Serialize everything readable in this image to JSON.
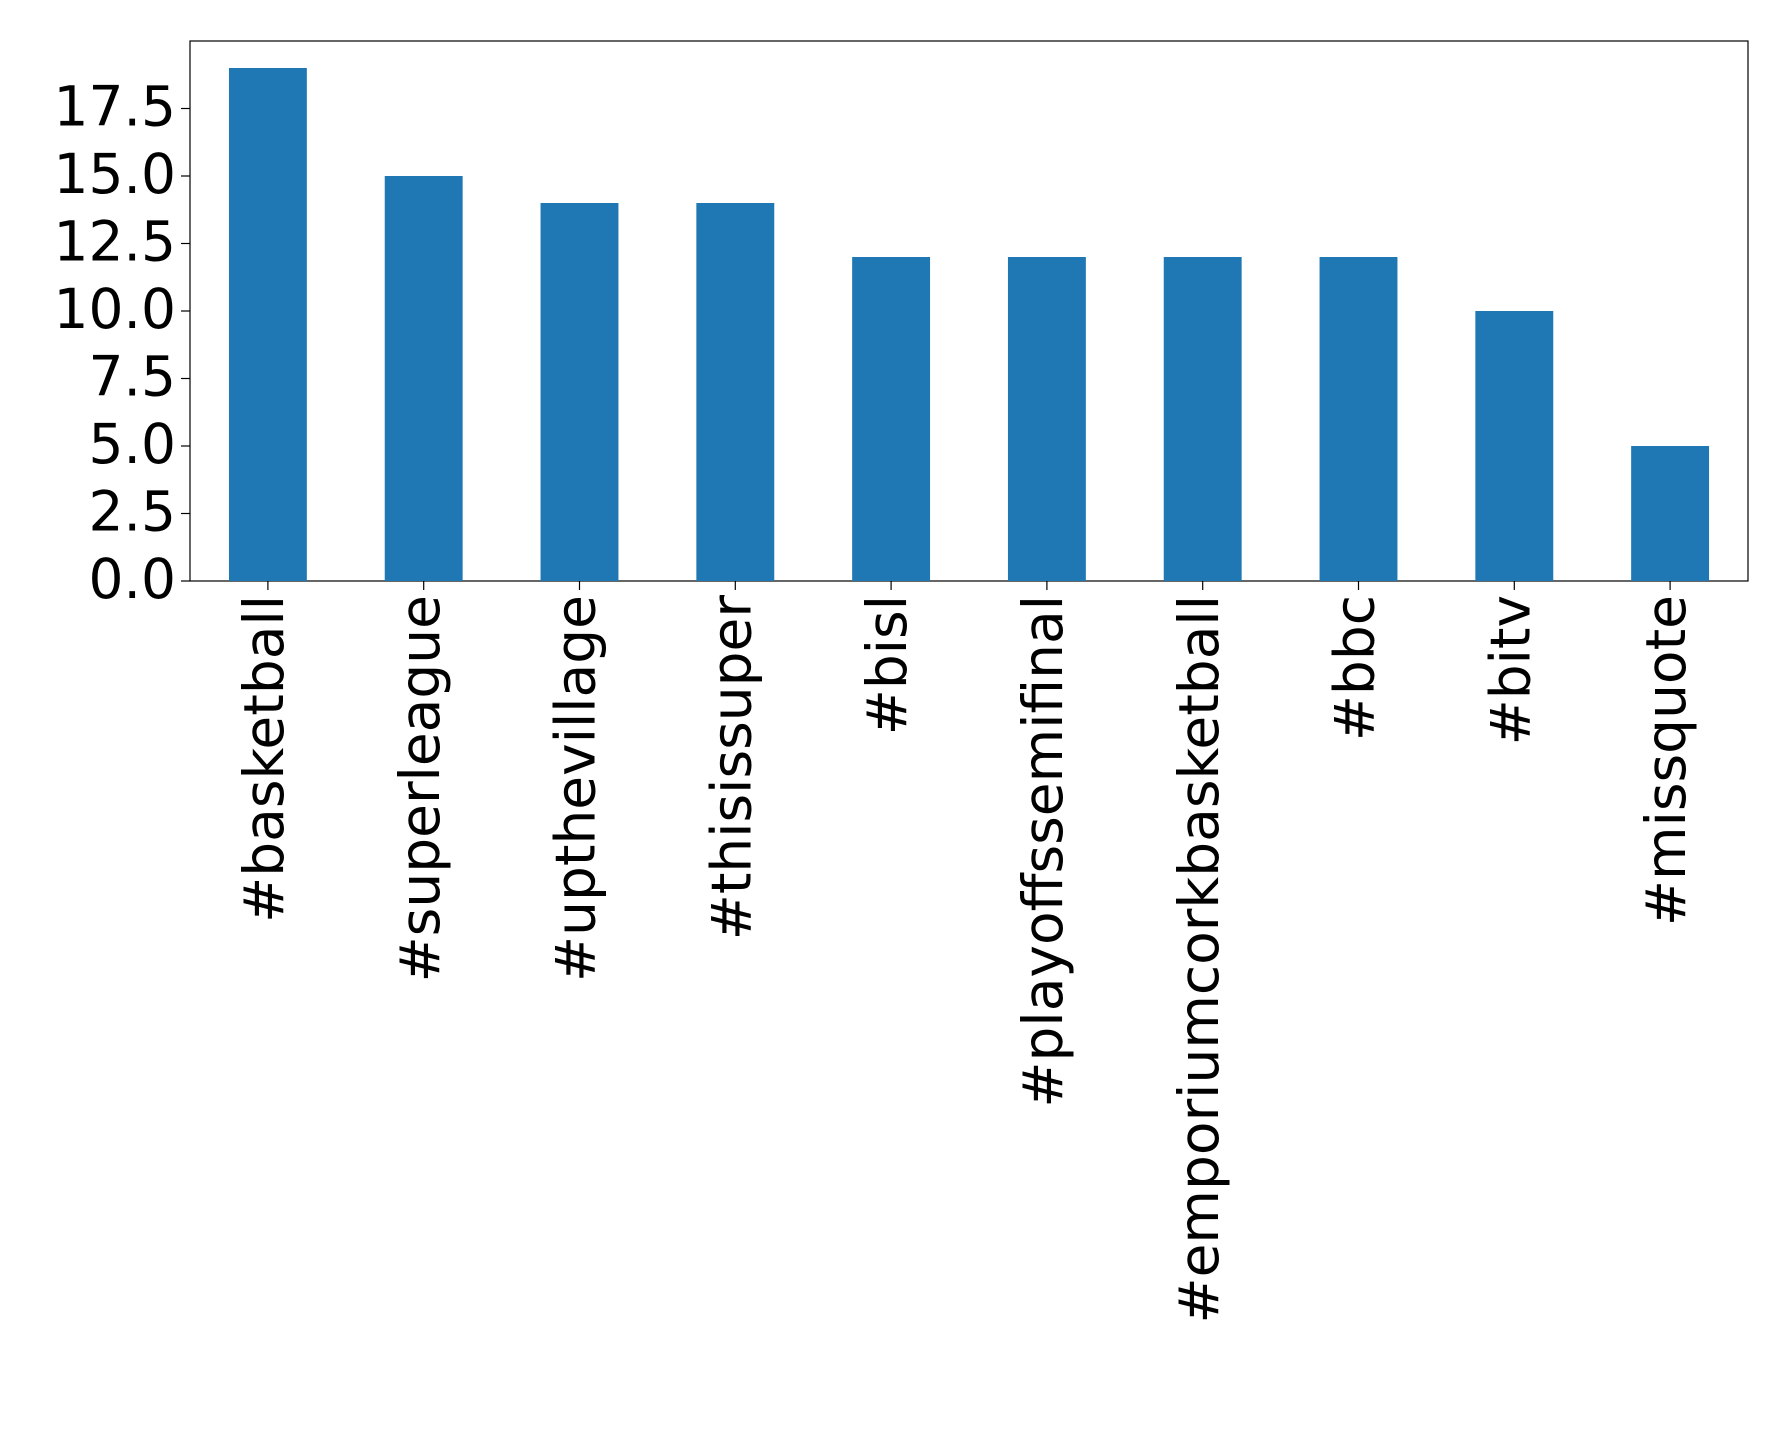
{
  "chart_data": {
    "type": "bar",
    "categories": [
      "#basketball",
      "#superleague",
      "#upthevillage",
      "#thisissuper",
      "#bisl",
      "#playoffssemifinal",
      "#emporiumcorkbasketball",
      "#bbc",
      "#bitv",
      "#missquote"
    ],
    "values": [
      19,
      15,
      14,
      14,
      12,
      12,
      12,
      12,
      10,
      5
    ],
    "color": "#1f77b4",
    "ylim": [
      0,
      20
    ],
    "yticks": [
      {
        "value": 0,
        "label": "0.0"
      },
      {
        "value": 2.5,
        "label": "2.5"
      },
      {
        "value": 5,
        "label": "5.0"
      },
      {
        "value": 7.5,
        "label": "7.5"
      },
      {
        "value": 10,
        "label": "10.0"
      },
      {
        "value": 12.5,
        "label": "12.5"
      },
      {
        "value": 15,
        "label": "15.0"
      },
      {
        "value": 17.5,
        "label": "17.5"
      }
    ],
    "grid": false
  }
}
